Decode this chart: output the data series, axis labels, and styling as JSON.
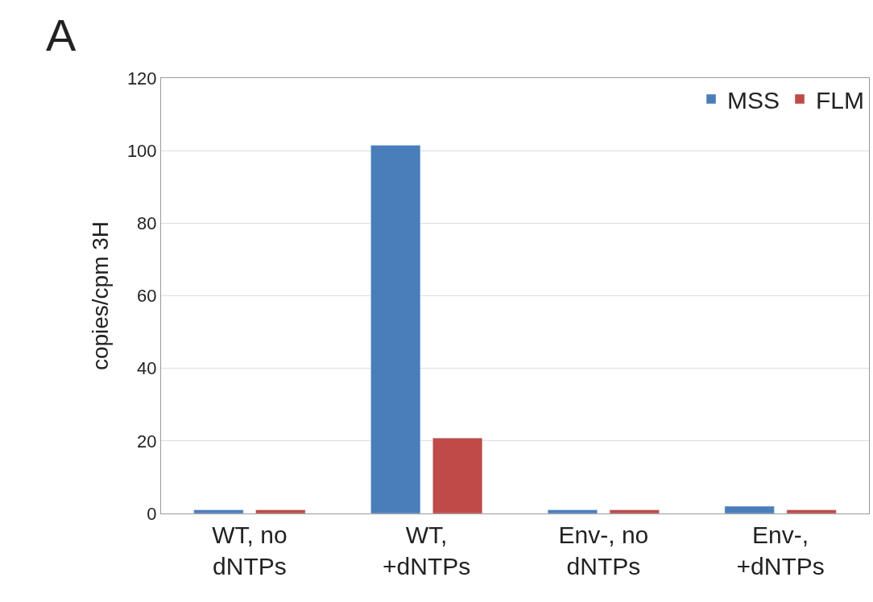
{
  "chart_data": {
    "type": "bar",
    "ylabel": "copies/cpm 3H",
    "annotations": [
      "A"
    ],
    "categories": [
      "WT, no\ndNTPs",
      "WT,\n+dNTPs",
      "Env-, no\ndNTPs",
      "Env-,\n+dNTPs"
    ],
    "series": [
      {
        "name": "MSS",
        "color": "#4a7ebb",
        "values": [
          1,
          101.5,
          1,
          2
        ]
      },
      {
        "name": "FLM",
        "color": "#be4b48",
        "values": [
          1,
          20.8,
          1,
          1
        ]
      }
    ],
    "ylim": [
      0,
      120
    ],
    "yticks": [
      0,
      20,
      40,
      60,
      80,
      100,
      120
    ],
    "grid": "y",
    "legend": "top right"
  }
}
